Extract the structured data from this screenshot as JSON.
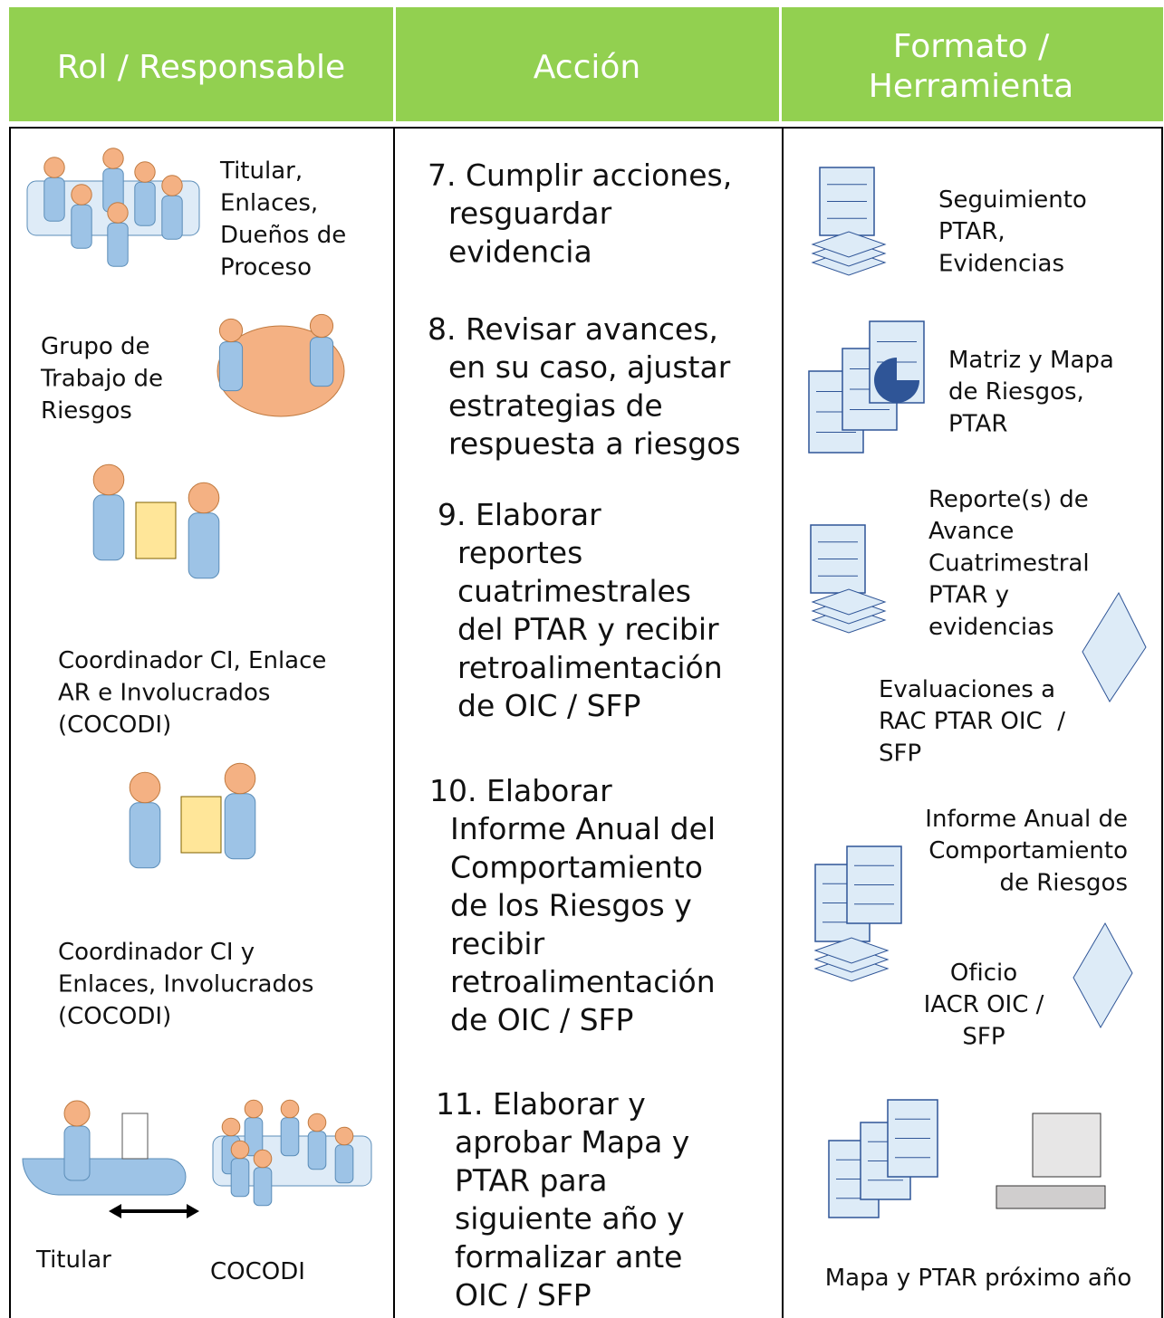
{
  "header": {
    "columns": [
      {
        "lines": [
          "Rol / Responsable"
        ]
      },
      {
        "lines": [
          "Acción"
        ]
      },
      {
        "lines": [
          "Formato /",
          "Herramienta"
        ]
      }
    ]
  },
  "roles": [
    {
      "lines": [
        "Titular,",
        "Enlaces,",
        "Dueños de",
        "Proceso"
      ]
    },
    {
      "lines": [
        "Grupo de",
        "Trabajo de",
        "Riesgos"
      ]
    },
    {
      "lines": [
        "Coordinador CI, Enlace",
        "AR e Involucrados",
        "(COCODI)"
      ]
    },
    {
      "lines": [
        "Coordinador CI y",
        "Enlaces, Involucrados",
        "(COCODI)"
      ]
    },
    {
      "lines": [
        "Titular"
      ]
    },
    {
      "lines": [
        "COCODI"
      ]
    }
  ],
  "actions": [
    {
      "lines": [
        "7. Cumplir acciones,",
        "resguardar",
        "evidencia"
      ]
    },
    {
      "lines": [
        "8. Revisar avances,",
        "en su caso, ajustar",
        "estrategias de",
        "respuesta a riesgos"
      ]
    },
    {
      "lines": [
        "9. Elaborar",
        "reportes",
        "cuatrimestrales",
        "del PTAR y recibir",
        "retroalimentación",
        "de OIC / SFP"
      ]
    },
    {
      "lines": [
        "10. Elaborar",
        "Informe Anual del",
        "Comportamiento",
        "de los Riesgos y",
        "recibir",
        "retroalimentación",
        "de OIC / SFP"
      ]
    },
    {
      "lines": [
        "11. Elaborar y",
        "aprobar Mapa y",
        "PTAR para",
        "siguiente año y",
        "formalizar ante",
        "OIC / SFP"
      ]
    }
  ],
  "formats": [
    {
      "lines": [
        "Seguimiento",
        "PTAR,",
        "Evidencias"
      ]
    },
    {
      "lines": [
        "Matriz y Mapa",
        "de Riesgos,",
        "PTAR"
      ]
    },
    {
      "lines": [
        "Reporte(s) de",
        "Avance",
        "Cuatrimestral",
        "PTAR y",
        "evidencias"
      ]
    },
    {
      "lines": [
        "Evaluaciones a",
        "RAC PTAR OIC  /",
        "SFP"
      ]
    },
    {
      "lines": [
        "Informe Anual de",
        "Comportamiento",
        "de Riesgos"
      ]
    },
    {
      "lines": [
        "Oficio",
        "IACR OIC /",
        "SFP"
      ]
    },
    {
      "lines": [
        "Mapa y PTAR próximo año"
      ]
    }
  ]
}
